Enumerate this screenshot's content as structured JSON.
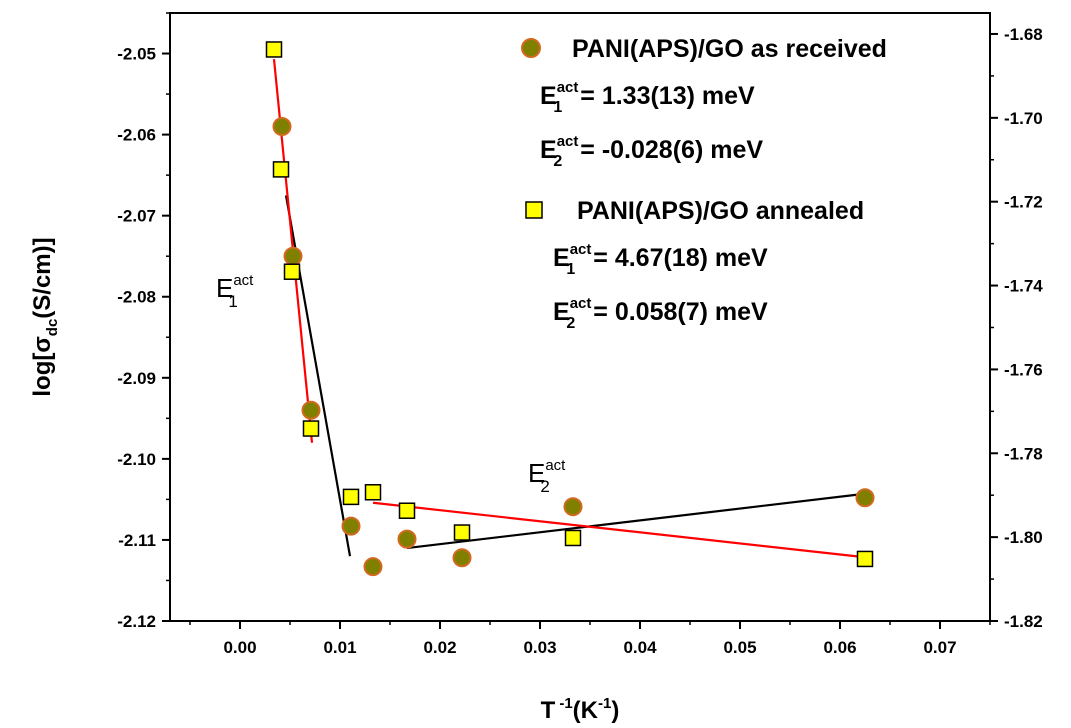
{
  "chart_data": {
    "type": "scatter",
    "xlabel": {
      "base": "T",
      "sup1": "-1",
      "mid": "(K",
      "sup2": "-1",
      "end": ")"
    },
    "ylabel": {
      "base": "log[σ",
      "sub": "dc",
      "end": "(S/cm)]"
    },
    "xlim": [
      -0.007,
      0.075
    ],
    "ylim_left": [
      -2.12,
      -2.045
    ],
    "ylim_right": [
      -1.82,
      -1.675
    ],
    "x_ticks": [
      "0.00",
      "0.01",
      "0.02",
      "0.03",
      "0.04",
      "0.05",
      "0.06",
      "0.07"
    ],
    "y_left_ticks": [
      "-2.05",
      "-2.06",
      "-2.07",
      "-2.08",
      "-2.09",
      "-2.10",
      "-2.11",
      "-2.12"
    ],
    "y_right_ticks": [
      "-1.68",
      "-1.70",
      "-1.72",
      "-1.74",
      "-1.76",
      "-1.78",
      "-1.80",
      "-1.82"
    ],
    "series": [
      {
        "name": "PANI(APS)/GO as received",
        "axis": "left",
        "marker": "circle",
        "color": "#808000",
        "edge": "#d2691e",
        "x": [
          0.0042,
          0.0053,
          0.0071,
          0.0111,
          0.0133,
          0.0167,
          0.0222,
          0.0333,
          0.0625
        ],
        "y": [
          -2.059,
          -2.075,
          -2.094,
          -2.1083,
          -2.1133,
          -2.1099,
          -2.1122,
          -2.1059,
          -2.1048
        ]
      },
      {
        "name": "PANI(APS)/GO annealed",
        "axis": "right",
        "marker": "square",
        "color": "#ffff00",
        "edge": "#000000",
        "x": [
          0.0034,
          0.0041,
          0.0052,
          0.0071,
          0.0111,
          0.0133,
          0.0167,
          0.0222,
          0.0333,
          0.0625
        ],
        "y": [
          -1.6837,
          -1.7123,
          -1.7367,
          -1.7741,
          -1.7904,
          -1.7893,
          -1.7937,
          -1.7989,
          -1.8002,
          -1.8052
        ]
      }
    ],
    "fit_lines": [
      {
        "axis": "left",
        "color": "#000000",
        "x": [
          0.0046,
          0.011
        ],
        "y": [
          -2.0675,
          -2.112
        ]
      },
      {
        "axis": "left",
        "color": "#000000",
        "x": [
          0.0167,
          0.0625
        ],
        "y": [
          -2.111,
          -2.1043
        ]
      },
      {
        "axis": "right",
        "color": "#ff0000",
        "x": [
          0.0034,
          0.0072
        ],
        "y": [
          -1.686,
          -1.7775
        ]
      },
      {
        "axis": "right",
        "color": "#ff0000",
        "x": [
          0.0133,
          0.0625
        ],
        "y": [
          -1.7918,
          -1.8048
        ]
      }
    ],
    "annotations": {
      "e1_left": {
        "base": "E",
        "sup": "act",
        "sub": "1"
      },
      "e2_mid": {
        "base": "E",
        "sup": "act",
        "sub": "2"
      }
    },
    "legend": {
      "position": "top-right",
      "entries": [
        {
          "label": "PANI(APS)/GO as received",
          "lines": [
            {
              "base": "E",
              "sup": "act",
              "sub": "1",
              "value": "= 1.33(13) meV"
            },
            {
              "base": "E",
              "sup": "act",
              "sub": "2",
              "value": "= -0.028(6) meV"
            }
          ]
        },
        {
          "label": "PANI(APS)/GO annealed",
          "lines": [
            {
              "base": "E",
              "sup": "act",
              "sub": "1",
              "value": "= 4.67(18) meV"
            },
            {
              "base": "E",
              "sup": "act",
              "sub": "2",
              "value": "= 0.058(7) meV"
            }
          ]
        }
      ]
    }
  }
}
